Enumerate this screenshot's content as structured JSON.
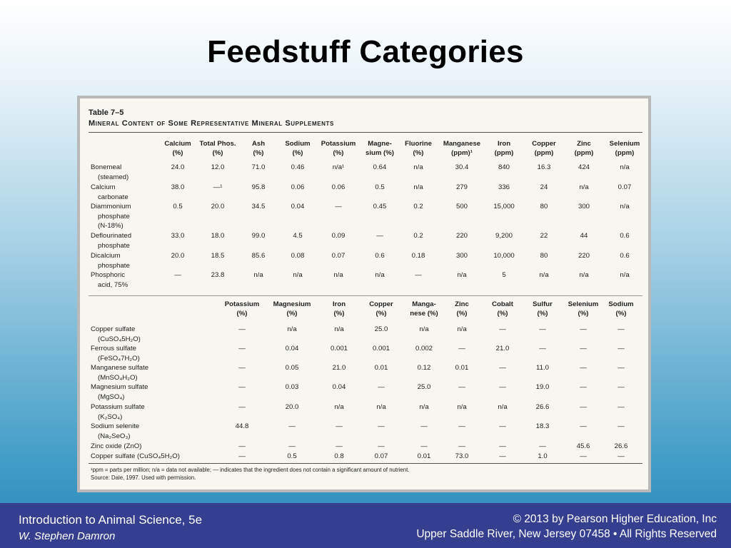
{
  "slide": {
    "title": "Feedstuff Categories"
  },
  "table": {
    "number": "Table 7–5",
    "caption": "Mineral Content of Some Representative Mineral Supplements",
    "section1": {
      "headers": [
        [
          "Calcium",
          "(%)"
        ],
        [
          "Total Phos.",
          "(%)"
        ],
        [
          "Ash",
          "(%)"
        ],
        [
          "Sodium",
          "(%)"
        ],
        [
          "Potassium",
          "(%)"
        ],
        [
          "Magne-",
          "sium (%)"
        ],
        [
          "Fluorine",
          "(%)"
        ],
        [
          "Manganese",
          "(ppm)¹"
        ],
        [
          "Iron",
          "(ppm)"
        ],
        [
          "Copper",
          "(ppm)"
        ],
        [
          "Zinc",
          "(ppm)"
        ],
        [
          "Selenium",
          "(ppm)"
        ]
      ],
      "rows": [
        {
          "label": [
            "Bonemeal",
            "(steamed)"
          ],
          "values": [
            "24.0",
            "12.0",
            "71.0",
            "0.46",
            "n/a¹",
            "0.64",
            "n/a",
            "30.4",
            "840",
            "16.3",
            "424",
            "n/a"
          ]
        },
        {
          "label": [
            "Calcium",
            "carbonate"
          ],
          "values": [
            "38.0",
            "—¹",
            "95.8",
            "0.06",
            "0.06",
            "0.5",
            "n/a",
            "279",
            "336",
            "24",
            "n/a",
            "0.07"
          ]
        },
        {
          "label": [
            "Diammonium",
            "phosphate",
            "(N-18%)"
          ],
          "values": [
            "0.5",
            "20.0",
            "34.5",
            "0.04",
            "—",
            "0.45",
            "0.2",
            "500",
            "15,000",
            "80",
            "300",
            "n/a"
          ]
        },
        {
          "label": [
            "Deflourinated",
            "phosphate"
          ],
          "values": [
            "33.0",
            "18.0",
            "99.0",
            "4.5",
            "0.09",
            "—",
            "0.2",
            "220",
            "9,200",
            "22",
            "44",
            "0.6"
          ]
        },
        {
          "label": [
            "Dicalcium",
            "phosphate"
          ],
          "values": [
            "20.0",
            "18.5",
            "85.6",
            "0.08",
            "0.07",
            "0.6",
            "0.18",
            "300",
            "10,000",
            "80",
            "220",
            "0.6"
          ]
        },
        {
          "label": [
            "Phosphoric",
            "acid, 75%"
          ],
          "values": [
            "—",
            "23.8",
            "n/a",
            "n/a",
            "n/a",
            "n/a",
            "—",
            "n/a",
            "5",
            "n/a",
            "n/a",
            "n/a"
          ]
        }
      ]
    },
    "section2": {
      "headers": [
        [
          "Potassium",
          "(%)"
        ],
        [
          "Magnesium",
          "(%)"
        ],
        [
          "Iron",
          "(%)"
        ],
        [
          "Copper",
          "(%)"
        ],
        [
          "Manga-",
          "nese (%)"
        ],
        [
          "Zinc",
          "(%)"
        ],
        [
          "Cobalt",
          "(%)"
        ],
        [
          "Sulfur",
          "(%)"
        ],
        [
          "Selenium",
          "(%)"
        ],
        [
          "Sodium",
          "(%)"
        ]
      ],
      "rows": [
        {
          "label": [
            "Copper sulfate",
            "(CuSO₄5H₂O)"
          ],
          "values": [
            "—",
            "n/a",
            "n/a",
            "25.0",
            "n/a",
            "n/a",
            "—",
            "—",
            "—",
            "—"
          ]
        },
        {
          "label": [
            "Ferrous sulfate",
            "(FeSO₄7H₂O)"
          ],
          "values": [
            "—",
            "0.04",
            "0.001",
            "0.001",
            "0.002",
            "—",
            "21.0",
            "—",
            "—",
            "—"
          ]
        },
        {
          "label": [
            "Manganese sulfate",
            "(MnSO₄H₂O)"
          ],
          "values": [
            "—",
            "0.05",
            "21.0",
            "0.01",
            "0.12",
            "0.01",
            "—",
            "11.0",
            "—",
            "—"
          ]
        },
        {
          "label": [
            "Magnesium sulfate",
            "(MgSO₄)"
          ],
          "values": [
            "—",
            "0.03",
            "0.04",
            "—",
            "25.0",
            "—",
            "—",
            "19.0",
            "—",
            "—"
          ]
        },
        {
          "label": [
            "Potassium sulfate",
            "(K₂SO₄)"
          ],
          "values": [
            "—",
            "20.0",
            "n/a",
            "n/a",
            "n/a",
            "n/a",
            "n/a",
            "26.6",
            "—",
            "—"
          ]
        },
        {
          "label": [
            "Sodium selenite",
            "(Na₂SeO₃)"
          ],
          "values": [
            "44.8",
            "—",
            "—",
            "—",
            "—",
            "—",
            "—",
            "18.3",
            "—",
            "—"
          ]
        },
        {
          "label": [
            "Zinc oxide (ZnO)"
          ],
          "values": [
            "—",
            "—",
            "—",
            "—",
            "—",
            "—",
            "—",
            "—",
            "45.6",
            "26.6"
          ]
        },
        {
          "label": [
            "Copper sulfate (CuSO₄5H₂O)"
          ],
          "values": [
            "—",
            "0.5",
            "0.8",
            "0.07",
            "0.01",
            "73.0",
            "—",
            "1.0",
            "—",
            "—"
          ]
        }
      ]
    },
    "footnote": "¹ppm = parts per million; n/a = data not available; — indicates that the ingredient does not contain a significant amount of nutrient.",
    "source": "Source: Dale, 1997. Used with permission."
  },
  "footer": {
    "book": "Introduction to Animal Science, 5e",
    "author": "W. Stephen Damron",
    "copyright": "© 2013 by Pearson Higher Education, Inc",
    "address": "Upper Saddle River, New Jersey 07458 • All Rights Reserved"
  }
}
